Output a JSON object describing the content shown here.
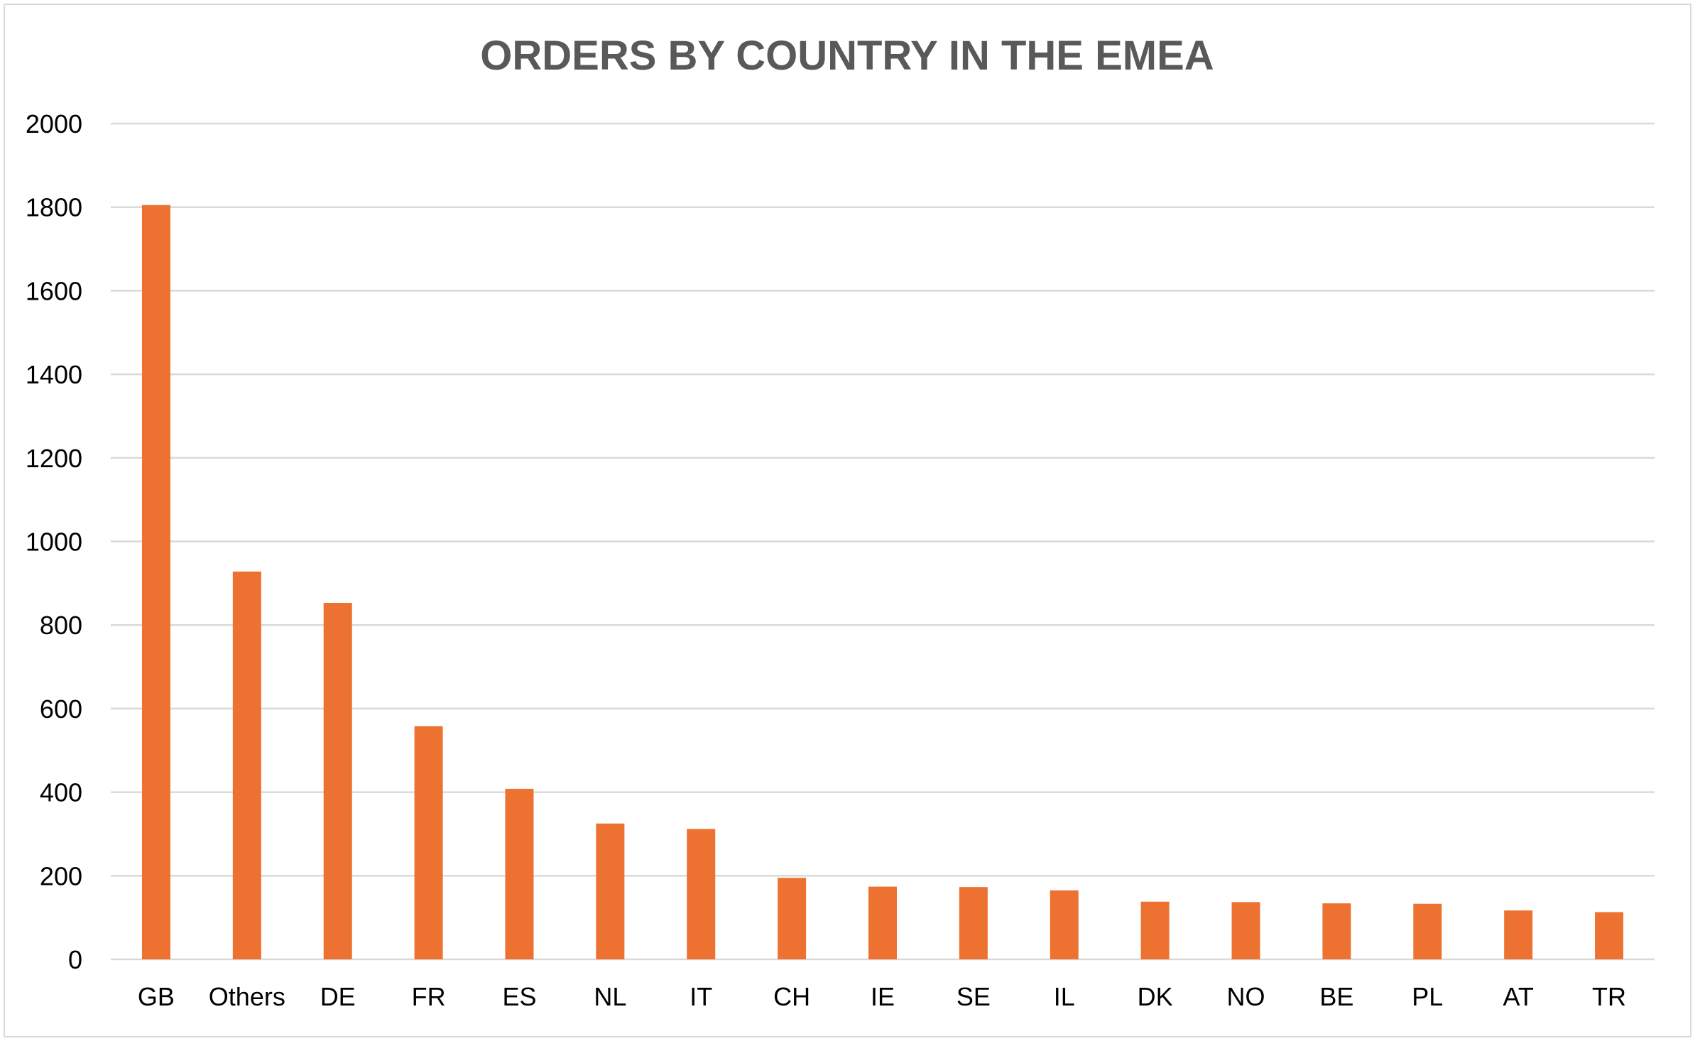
{
  "chart_data": {
    "type": "bar",
    "title": "ORDERS  BY COUNTRY IN THE EMEA",
    "xlabel": "",
    "ylabel": "",
    "categories": [
      "GB",
      "Others",
      "DE",
      "FR",
      "ES",
      "NL",
      "IT",
      "CH",
      "IE",
      "SE",
      "IL",
      "DK",
      "NO",
      "BE",
      "PL",
      "AT",
      "TR"
    ],
    "values": [
      1805,
      928,
      853,
      558,
      408,
      325,
      312,
      195,
      174,
      173,
      165,
      138,
      137,
      134,
      133,
      117,
      113
    ],
    "ylim": [
      0,
      2000
    ],
    "yticks": [
      "0",
      "200",
      "400",
      "600",
      "800",
      "1000",
      "1200",
      "1400",
      "1600",
      "1800",
      "2000"
    ],
    "grid": true,
    "legend": "none",
    "bar_color": "#ED7232"
  }
}
